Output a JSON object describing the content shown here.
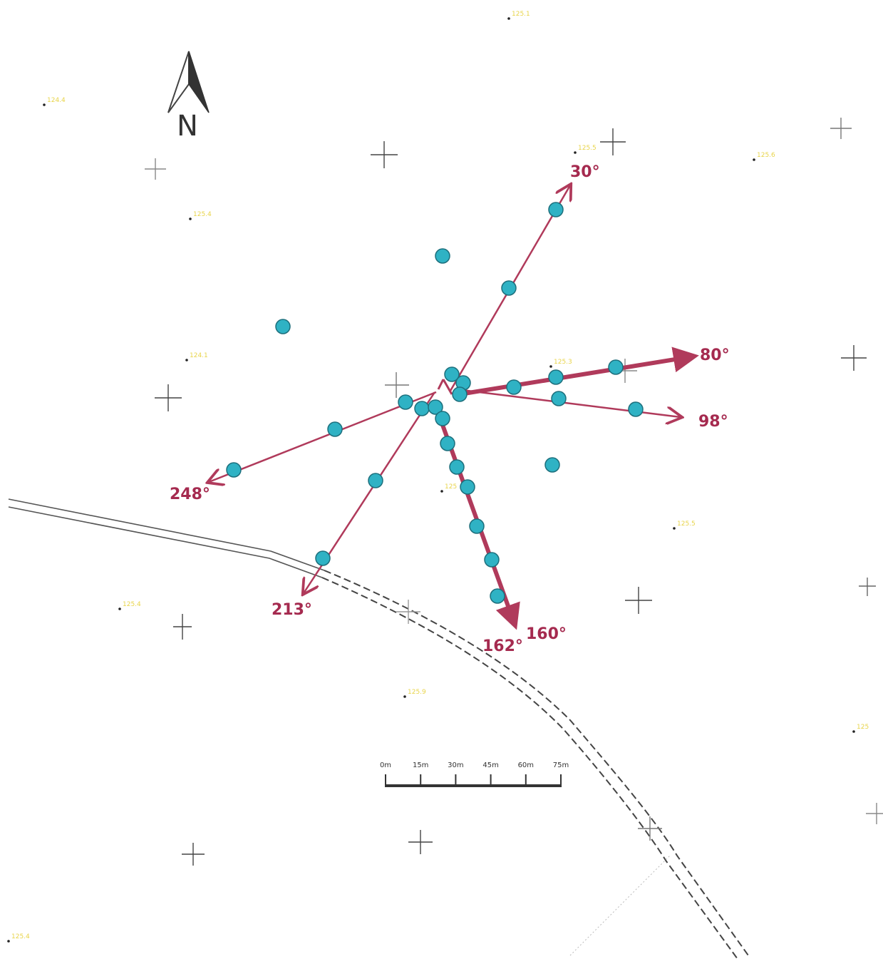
{
  "colors": {
    "arrow": "#b03a5b",
    "arrow_label": "#a52a4f",
    "marker_fill": "#2fb2c4",
    "marker_stroke": "#1d6f7c",
    "grid_cross": "#333333",
    "spot_height_text": "#e8d44a",
    "road": "#444444"
  },
  "north_arrow": {
    "label": "N"
  },
  "bearings": [
    {
      "id": "b30",
      "label": "30°"
    },
    {
      "id": "b80",
      "label": "80°"
    },
    {
      "id": "b98",
      "label": "98°"
    },
    {
      "id": "b160",
      "label": "160°"
    },
    {
      "id": "b162",
      "label": "162°"
    },
    {
      "id": "b213",
      "label": "213°"
    },
    {
      "id": "b248",
      "label": "248°"
    }
  ],
  "scale_bar": {
    "ticks": [
      "0m",
      "15m",
      "30m",
      "45m",
      "60m",
      "75m"
    ]
  },
  "spot_heights": [
    "125.1",
    "124.4",
    "125.5",
    "125.6",
    "125.4",
    "124.1",
    "125.3",
    "125",
    "125.5",
    "125.4",
    "125.9",
    "125",
    "125.4"
  ],
  "markers_count": 27,
  "icons": [
    "north-arrow-icon",
    "grid-cross-icon",
    "marker-icon"
  ]
}
